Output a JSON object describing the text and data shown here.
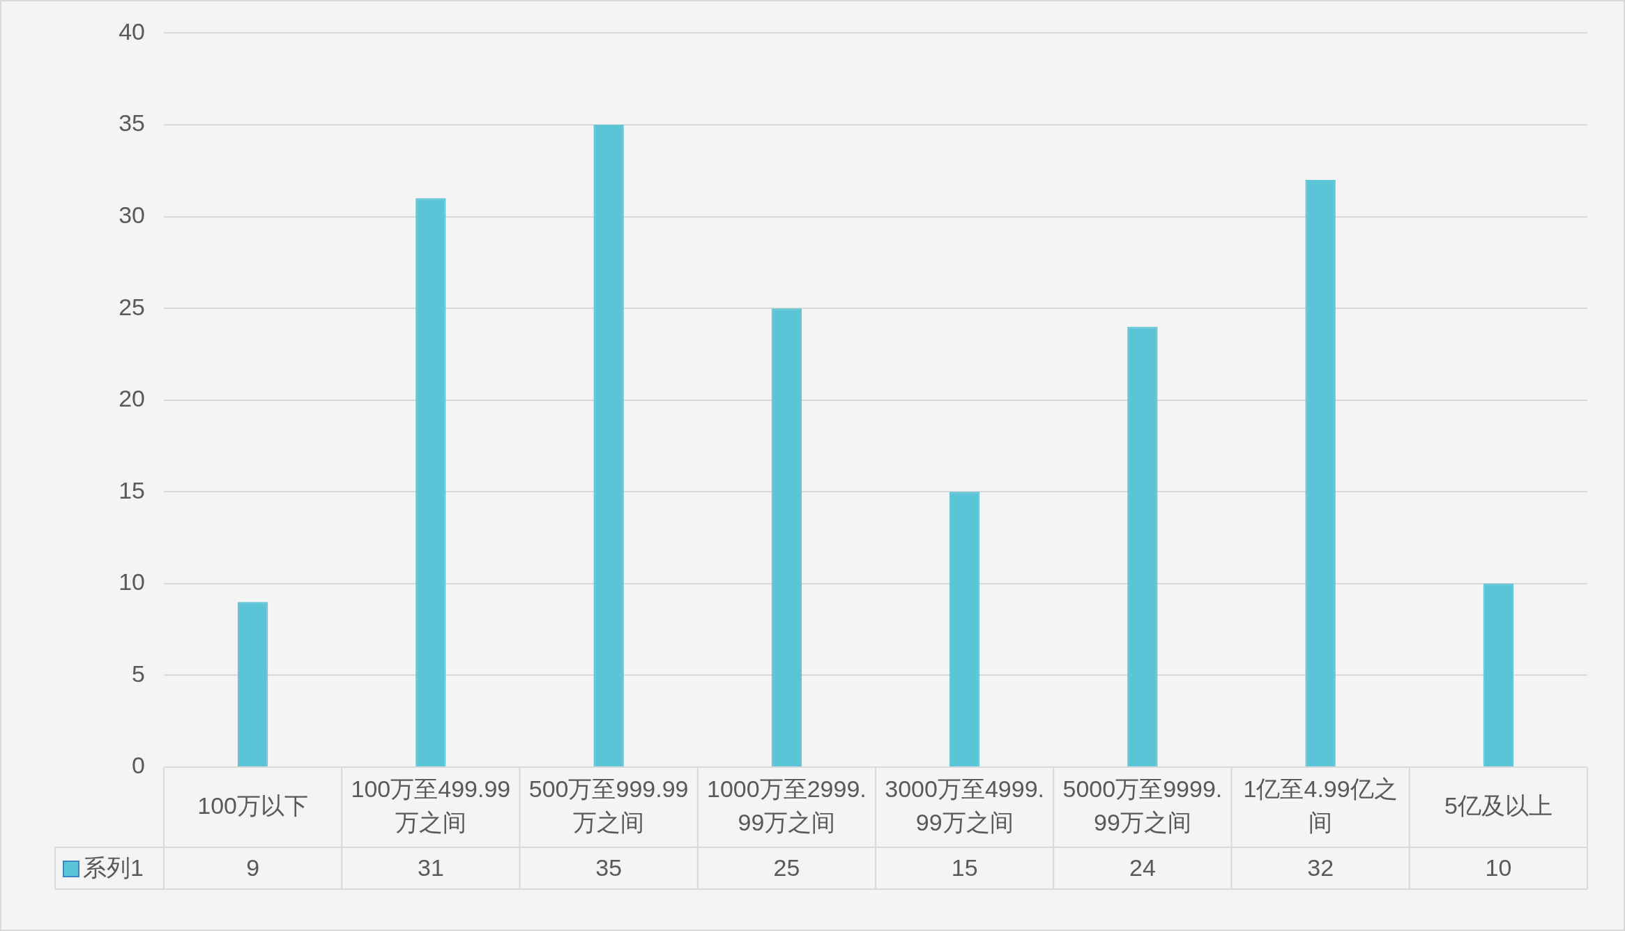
{
  "chart_data": {
    "type": "bar",
    "categories": [
      "100万以下",
      "100万至499.99万之间",
      "500万至999.99万之间",
      "1000万至2999.99万之间",
      "3000万至4999.99万之间",
      "5000万至9999.99万之间",
      "1亿至4.99亿之间",
      "5亿及以上"
    ],
    "series": [
      {
        "name": "系列1",
        "color": "#5bc4d6",
        "values": [
          9,
          31,
          35,
          25,
          15,
          24,
          32,
          10
        ]
      }
    ],
    "ylim": [
      0,
      40
    ],
    "yticks": [
      0,
      5,
      10,
      15,
      20,
      25,
      30,
      35,
      40
    ],
    "grid": "y",
    "legend": "bottom left",
    "data_labels": true
  }
}
